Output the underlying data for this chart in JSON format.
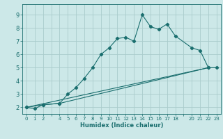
{
  "xlabel": "Humidex (Indice chaleur)",
  "ylabel": "",
  "bg_color": "#cce8e8",
  "grid_color": "#aacccc",
  "line_color": "#1a6e6e",
  "xlim": [
    -0.5,
    23.5
  ],
  "ylim": [
    1.5,
    9.8
  ],
  "yticks": [
    2,
    3,
    4,
    5,
    6,
    7,
    8,
    9
  ],
  "series1_x": [
    0,
    1,
    2,
    4,
    5,
    6,
    7,
    8,
    9,
    10,
    11,
    12,
    13,
    14,
    15,
    16,
    17,
    18,
    20,
    21,
    22,
    23
  ],
  "series1_y": [
    2.0,
    1.9,
    2.2,
    2.3,
    3.0,
    3.5,
    4.2,
    5.0,
    6.0,
    6.5,
    7.2,
    7.3,
    7.0,
    9.0,
    8.1,
    7.9,
    8.3,
    7.4,
    6.5,
    6.3,
    5.0,
    5.0
  ],
  "series2_x": [
    0,
    2,
    4,
    22
  ],
  "series2_y": [
    2.0,
    2.2,
    2.3,
    5.0
  ],
  "series3_x": [
    0,
    22
  ],
  "series3_y": [
    2.0,
    5.0
  ]
}
